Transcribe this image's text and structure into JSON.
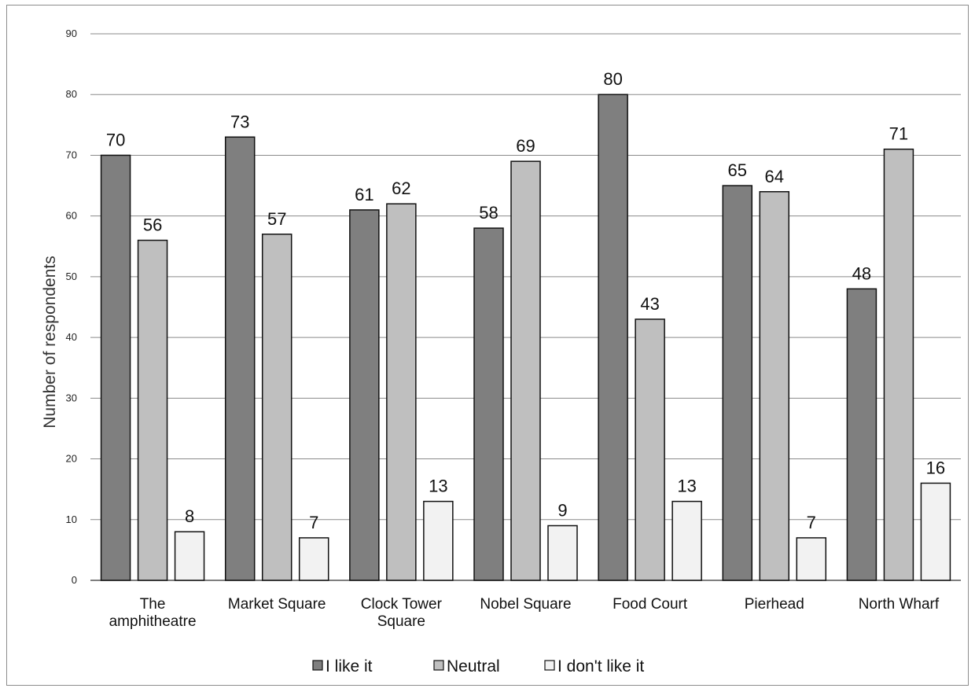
{
  "chart_data": {
    "type": "bar",
    "title": "",
    "xlabel": "",
    "ylabel": "Number of respondents",
    "ylim": [
      0,
      90
    ],
    "yticks": [
      0,
      10,
      20,
      30,
      40,
      50,
      60,
      70,
      80,
      90
    ],
    "grid": true,
    "legend_position": "bottom",
    "categories": [
      [
        "The",
        "amphitheatre"
      ],
      [
        "Market Square"
      ],
      [
        "Clock Tower",
        "Square"
      ],
      [
        "Nobel Square"
      ],
      [
        "Food Court"
      ],
      [
        "Pierhead"
      ],
      [
        "North Wharf"
      ]
    ],
    "series": [
      {
        "name": "I like it",
        "color": "#7f7f7f",
        "values": [
          70,
          73,
          61,
          58,
          80,
          65,
          48
        ]
      },
      {
        "name": "Neutral",
        "color": "#bfbfbf",
        "values": [
          56,
          57,
          62,
          69,
          43,
          64,
          71
        ]
      },
      {
        "name": "I don't like it",
        "color": "#f2f2f2",
        "values": [
          8,
          7,
          13,
          9,
          13,
          7,
          16
        ]
      }
    ]
  }
}
